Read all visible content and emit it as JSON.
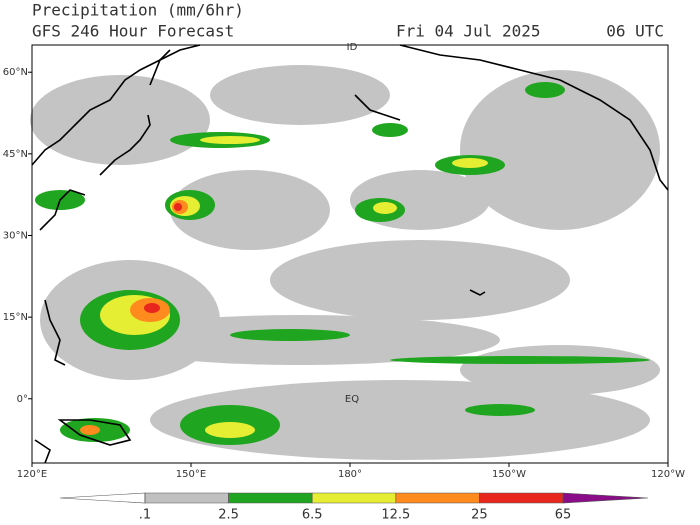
{
  "header": {
    "title": "Precipitation (mm/6hr)",
    "subtitle": "GFS 246 Hour Forecast",
    "date": "Fri 04 Jul 2025",
    "time": "06 UTC"
  },
  "map": {
    "xlim": [
      120,
      -120
    ],
    "ylim": [
      -11.8,
      65
    ],
    "lat_ticks": [
      {
        "value": 60,
        "label": "60°N"
      },
      {
        "value": 45,
        "label": "45°N"
      },
      {
        "value": 30,
        "label": "30°N"
      },
      {
        "value": 15,
        "label": "15°N"
      },
      {
        "value": 0,
        "label": "0°"
      }
    ],
    "lon_ticks": [
      {
        "value": 120,
        "label": "120°E"
      },
      {
        "value": 150,
        "label": "150°E"
      },
      {
        "value": 180,
        "label": "180°"
      },
      {
        "value": -150,
        "label": "150°W"
      },
      {
        "value": -120,
        "label": "120°W"
      }
    ],
    "annotations": [
      "ID",
      "EQ"
    ]
  },
  "colorbar": {
    "levels": [
      {
        "value": 0.1,
        "label": ".1"
      },
      2.5,
      6.5,
      12.5,
      25,
      65
    ],
    "colors": [
      "#ffffff",
      "#c0c0c0",
      "#1fa51f",
      "#e6ee33",
      "#ff8a1e",
      "#e8261e",
      "#8a0c88"
    ]
  }
}
